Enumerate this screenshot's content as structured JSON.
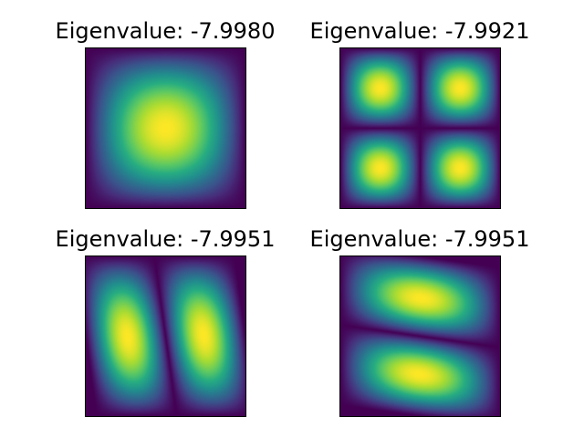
{
  "chart_data": [
    {
      "type": "heatmap",
      "title": "Eigenvalue: -7.9980",
      "colormap": "viridis",
      "mode_shape": "single central lobe (1,1 mode)"
    },
    {
      "type": "heatmap",
      "title": "Eigenvalue: -7.9921",
      "colormap": "viridis",
      "mode_shape": "four lobes, 2x2 grid (2,2 mode)"
    },
    {
      "type": "heatmap",
      "title": "Eigenvalue: -7.9951",
      "colormap": "viridis",
      "mode_shape": "two lobes split by a slightly tilted vertical nodal line"
    },
    {
      "type": "heatmap",
      "title": "Eigenvalue: -7.9951",
      "colormap": "viridis",
      "mode_shape": "two lobes split by a slightly tilted horizontal nodal line"
    }
  ]
}
